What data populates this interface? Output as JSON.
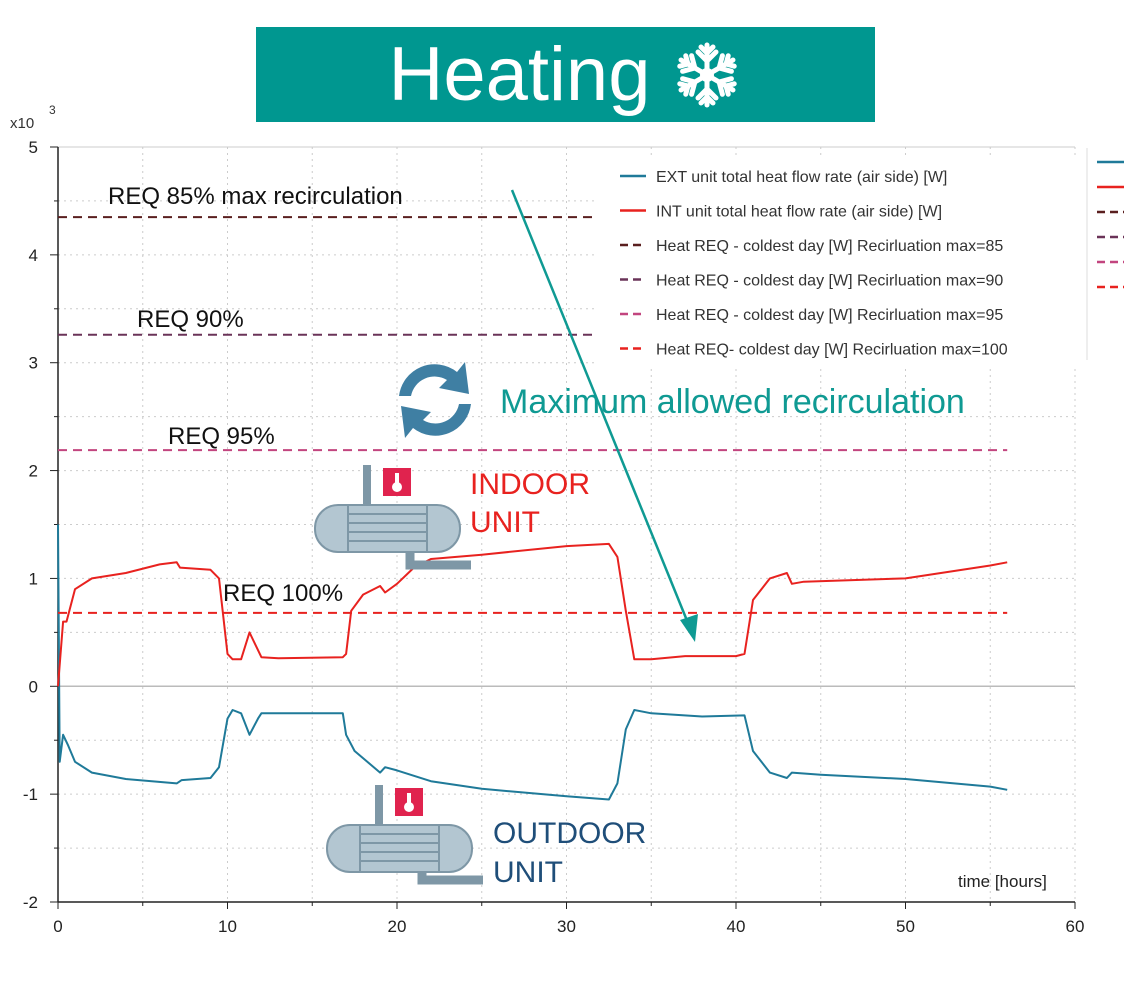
{
  "title": "Heating",
  "colors": {
    "banner": "#009790",
    "ext": "#1f7a99",
    "int": "#e8221f",
    "req85": "#5a1f1f",
    "req90": "#6a3358",
    "req95": "#c2457f",
    "req100": "#e8221f",
    "annotation": "#0f9a93",
    "outdoor": "#1f4e79"
  },
  "annotations": {
    "max_recirc": "Maximum allowed recirculation",
    "indoor": [
      "INDOOR",
      "UNIT"
    ],
    "outdoor": [
      "OUTDOOR",
      "UNIT"
    ],
    "req85": "REQ 85% max recirculation",
    "req90": "REQ 90%",
    "req95": "REQ 95%",
    "req100": "REQ 100%"
  },
  "chart_data": {
    "type": "line",
    "xlabel": "time [hours]",
    "ylabel": "",
    "y_multiplier": "x10",
    "y_multiplier_exp": "3",
    "xlim": [
      0,
      60
    ],
    "ylim": [
      -2,
      5
    ],
    "xticks": [
      "0",
      "10",
      "20",
      "30",
      "40",
      "50",
      "60"
    ],
    "yticks": [
      "-2",
      "-1",
      "0",
      "1",
      "2",
      "3",
      "4",
      "5"
    ],
    "grid": true,
    "legend_position": "top-right",
    "series": [
      {
        "name": "EXT unit total heat flow rate (air side) [W]",
        "style": "solid",
        "color": "#1f7a99",
        "x": [
          0,
          0.1,
          0.3,
          0.6,
          1,
          2,
          4,
          7,
          7.3,
          9,
          9.5,
          10,
          10.3,
          10.8,
          11.3,
          11.8,
          12,
          16.8,
          17,
          17.5,
          19,
          19.3,
          20,
          22,
          25,
          30,
          32.5,
          33,
          33.5,
          34,
          35,
          38,
          40.5,
          41,
          42,
          43,
          43.3,
          45,
          50,
          55,
          56
        ],
        "y": [
          1.5,
          -0.7,
          -0.45,
          -0.55,
          -0.7,
          -0.8,
          -0.86,
          -0.9,
          -0.87,
          -0.85,
          -0.75,
          -0.3,
          -0.22,
          -0.25,
          -0.45,
          -0.3,
          -0.25,
          -0.25,
          -0.45,
          -0.6,
          -0.8,
          -0.75,
          -0.78,
          -0.88,
          -0.95,
          -1.02,
          -1.05,
          -0.9,
          -0.4,
          -0.22,
          -0.25,
          -0.28,
          -0.27,
          -0.6,
          -0.8,
          -0.85,
          -0.8,
          -0.82,
          -0.86,
          -0.93,
          -0.96
        ]
      },
      {
        "name": "INT unit total heat flow rate (air side) [W]",
        "style": "solid",
        "color": "#e8221f",
        "x": [
          0,
          0.3,
          0.5,
          1,
          2,
          4,
          6,
          7,
          7.2,
          9,
          9.5,
          10,
          10.3,
          10.8,
          11.3,
          11.6,
          12,
          13,
          16.8,
          17,
          17.3,
          18,
          19,
          19.3,
          20,
          21,
          22,
          25,
          30,
          32.5,
          33,
          33.5,
          34,
          35,
          37,
          40,
          40.5,
          41,
          42,
          43,
          43.3,
          44,
          50,
          55,
          56
        ],
        "y": [
          0,
          0.6,
          0.6,
          0.9,
          1.0,
          1.05,
          1.13,
          1.15,
          1.1,
          1.08,
          1.0,
          0.3,
          0.25,
          0.25,
          0.5,
          0.4,
          0.27,
          0.26,
          0.27,
          0.3,
          0.7,
          0.85,
          0.93,
          0.87,
          0.95,
          1.1,
          1.18,
          1.22,
          1.3,
          1.32,
          1.2,
          0.7,
          0.25,
          0.25,
          0.28,
          0.28,
          0.3,
          0.8,
          1.0,
          1.05,
          0.95,
          0.97,
          1.0,
          1.12,
          1.15
        ]
      },
      {
        "name": "Heat REQ - coldest day [W] Recirluation max=85",
        "style": "dashed",
        "color": "#5a1f1f",
        "x": [
          0,
          32.5
        ],
        "y": [
          4.35,
          4.35
        ]
      },
      {
        "name": "Heat REQ - coldest day [W] Recirluation max=90",
        "style": "dashed",
        "color": "#6a3358",
        "x": [
          0,
          32.5
        ],
        "y": [
          3.26,
          3.26
        ]
      },
      {
        "name": "Heat REQ - coldest day [W] Recirluation max=95",
        "style": "dashed",
        "color": "#c2457f",
        "x": [
          0,
          56
        ],
        "y": [
          2.19,
          2.19
        ]
      },
      {
        "name": "Heat REQ- coldest day [W] Recirluation max=100",
        "style": "dashed",
        "color": "#e8221f",
        "x": [
          0,
          56
        ],
        "y": [
          0.68,
          0.68
        ]
      }
    ]
  }
}
